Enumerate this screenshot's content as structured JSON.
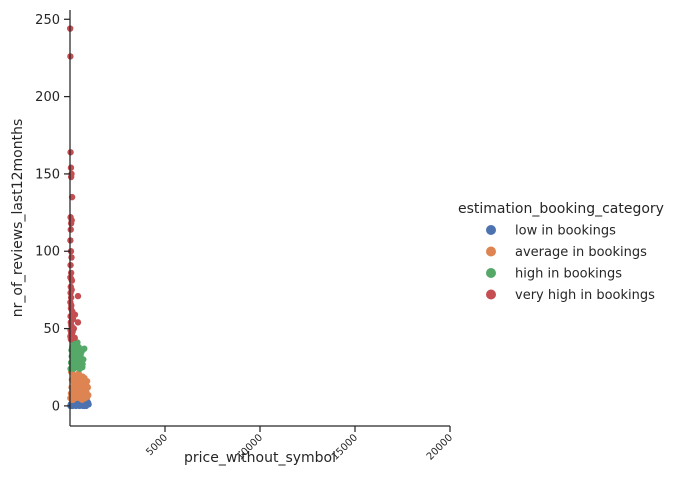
{
  "chart_data": {
    "type": "scatter",
    "xlabel": "price_without_symbol",
    "ylabel": "nr_of_reviews_last12months",
    "xlim": [
      0,
      20000
    ],
    "ylim": [
      -13,
      256
    ],
    "x_ticks": [
      5000,
      10000,
      15000,
      20000
    ],
    "y_ticks": [
      0,
      50,
      100,
      150,
      200,
      250
    ],
    "grid": false,
    "legend": {
      "title": "estimation_booking_category",
      "placement": "right"
    },
    "series": [
      {
        "name": "low in bookings",
        "color": "#4c72b0",
        "points": [
          [
            20,
            0
          ],
          [
            60,
            0
          ],
          [
            100,
            1
          ],
          [
            150,
            0
          ],
          [
            200,
            2
          ],
          [
            260,
            1
          ],
          [
            320,
            0
          ],
          [
            380,
            1
          ],
          [
            440,
            2
          ],
          [
            500,
            0
          ],
          [
            560,
            1
          ],
          [
            620,
            2
          ],
          [
            680,
            0
          ],
          [
            740,
            1
          ],
          [
            800,
            2
          ],
          [
            850,
            0
          ],
          [
            900,
            3
          ],
          [
            40,
            1
          ],
          [
            120,
            2
          ],
          [
            180,
            1
          ],
          [
            240,
            3
          ],
          [
            300,
            2
          ],
          [
            360,
            3
          ],
          [
            420,
            1
          ],
          [
            480,
            3
          ],
          [
            540,
            2
          ],
          [
            600,
            3
          ],
          [
            660,
            1
          ],
          [
            720,
            3
          ],
          [
            780,
            0
          ],
          [
            830,
            2
          ],
          [
            880,
            1
          ],
          [
            950,
            2
          ],
          [
            980,
            1
          ]
        ]
      },
      {
        "name": "average in bookings",
        "color": "#dd8452",
        "points": [
          [
            20,
            5
          ],
          [
            50,
            8
          ],
          [
            80,
            12
          ],
          [
            110,
            4
          ],
          [
            140,
            16
          ],
          [
            170,
            9
          ],
          [
            200,
            20
          ],
          [
            230,
            6
          ],
          [
            260,
            14
          ],
          [
            300,
            11
          ],
          [
            340,
            18
          ],
          [
            380,
            7
          ],
          [
            420,
            13
          ],
          [
            460,
            21
          ],
          [
            500,
            5
          ],
          [
            540,
            10
          ],
          [
            580,
            15
          ],
          [
            620,
            8
          ],
          [
            660,
            19
          ],
          [
            700,
            12
          ],
          [
            740,
            6
          ],
          [
            780,
            10
          ],
          [
            820,
            14
          ],
          [
            860,
            9
          ],
          [
            900,
            16
          ],
          [
            940,
            12
          ],
          [
            960,
            7
          ],
          [
            60,
            22
          ],
          [
            100,
            17
          ],
          [
            160,
            4
          ],
          [
            220,
            10
          ],
          [
            280,
            5
          ],
          [
            320,
            7
          ],
          [
            360,
            15
          ],
          [
            400,
            9
          ],
          [
            440,
            17
          ],
          [
            480,
            11
          ],
          [
            520,
            19
          ],
          [
            560,
            6
          ],
          [
            600,
            13
          ],
          [
            640,
            4
          ],
          [
            680,
            9
          ],
          [
            720,
            16
          ],
          [
            760,
            18
          ],
          [
            800,
            5
          ],
          [
            840,
            11
          ],
          [
            880,
            13
          ],
          [
            920,
            6
          ]
        ]
      },
      {
        "name": "high in bookings",
        "color": "#55a868",
        "points": [
          [
            30,
            24
          ],
          [
            60,
            28
          ],
          [
            90,
            32
          ],
          [
            120,
            38
          ],
          [
            150,
            42
          ],
          [
            180,
            26
          ],
          [
            210,
            30
          ],
          [
            240,
            35
          ],
          [
            270,
            40
          ],
          [
            300,
            25
          ],
          [
            330,
            29
          ],
          [
            360,
            34
          ],
          [
            390,
            41
          ],
          [
            420,
            27
          ],
          [
            450,
            31
          ],
          [
            480,
            36
          ],
          [
            520,
            24
          ],
          [
            560,
            33
          ],
          [
            600,
            28
          ],
          [
            650,
            25
          ],
          [
            700,
            30
          ],
          [
            750,
            37
          ],
          [
            40,
            44
          ],
          [
            80,
            36
          ],
          [
            110,
            27
          ],
          [
            140,
            33
          ],
          [
            170,
            39
          ],
          [
            200,
            24
          ],
          [
            230,
            28
          ],
          [
            260,
            32
          ],
          [
            290,
            37
          ],
          [
            320,
            26
          ],
          [
            350,
            31
          ],
          [
            380,
            25
          ],
          [
            410,
            29
          ],
          [
            440,
            34
          ],
          [
            460,
            38
          ],
          [
            490,
            26
          ],
          [
            530,
            30
          ],
          [
            570,
            25
          ],
          [
            610,
            35
          ],
          [
            660,
            27
          ]
        ]
      },
      {
        "name": "very high in bookings",
        "color": "#c44e52",
        "points": [
          [
            10,
            244
          ],
          [
            20,
            226
          ],
          [
            30,
            164
          ],
          [
            50,
            154
          ],
          [
            80,
            150
          ],
          [
            60,
            148
          ],
          [
            110,
            135
          ],
          [
            30,
            122
          ],
          [
            90,
            120
          ],
          [
            60,
            118
          ],
          [
            40,
            114
          ],
          [
            20,
            107
          ],
          [
            50,
            100
          ],
          [
            80,
            96
          ],
          [
            30,
            91
          ],
          [
            60,
            86
          ],
          [
            20,
            83
          ],
          [
            70,
            82
          ],
          [
            100,
            81
          ],
          [
            40,
            77
          ],
          [
            90,
            75
          ],
          [
            30,
            73
          ],
          [
            60,
            70
          ],
          [
            420,
            71
          ],
          [
            20,
            67
          ],
          [
            70,
            65
          ],
          [
            50,
            63
          ],
          [
            120,
            61
          ],
          [
            30,
            58
          ],
          [
            260,
            59
          ],
          [
            90,
            57
          ],
          [
            160,
            56
          ],
          [
            420,
            54
          ],
          [
            40,
            54
          ],
          [
            70,
            52
          ],
          [
            110,
            51
          ],
          [
            200,
            50
          ],
          [
            30,
            49
          ],
          [
            140,
            48
          ],
          [
            60,
            47
          ],
          [
            100,
            46
          ],
          [
            20,
            45
          ],
          [
            80,
            44
          ],
          [
            250,
            44
          ],
          [
            50,
            43
          ]
        ]
      }
    ]
  }
}
